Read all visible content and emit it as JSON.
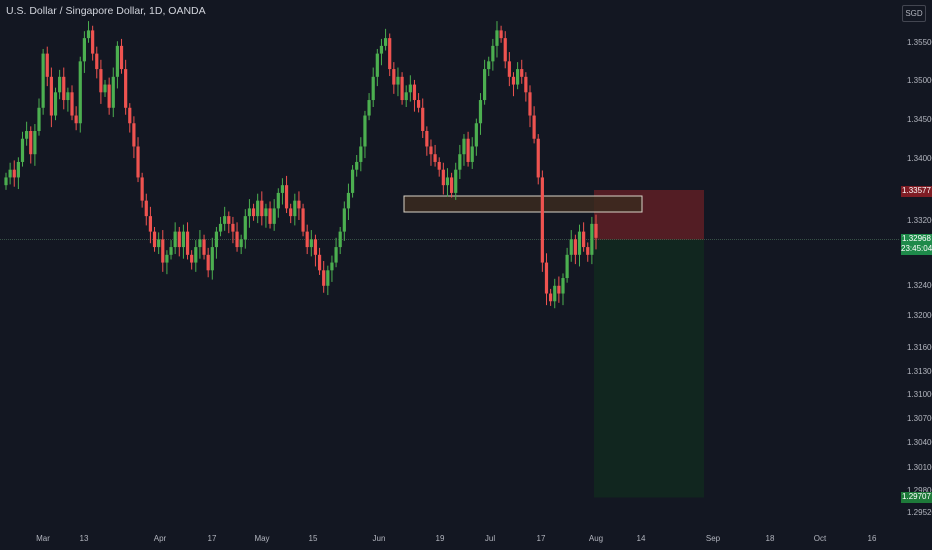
{
  "header": {
    "instrument": "U.S. Dollar / Singapore Dollar",
    "separator": ", ",
    "interval": "1D",
    "source": "OANDA",
    "currency": "SGD"
  },
  "colors": {
    "background": "#131722",
    "up": "#26a69a",
    "up_bright": "#4caf50",
    "down": "#ef5350",
    "zone_fill": "#3b2a1e",
    "zone_border": "#d9d3c7",
    "stop_zone": "#5b1e25",
    "target_zone": "#12281f",
    "current_line": "#5d8a6a"
  },
  "markers": {
    "current_price": "1.32968",
    "countdown": "23:45:04",
    "stop_price": "1.33577",
    "target_price": "1.29707"
  },
  "chart_data": {
    "type": "candlestick",
    "y_ticks": [
      "1.35500",
      "1.35000",
      "1.34500",
      "1.34000",
      "1.33200",
      "1.32400",
      "1.32000",
      "1.31600",
      "1.31300",
      "1.31000",
      "1.30700",
      "1.30400",
      "1.30100",
      "1.29800",
      "1.29520"
    ],
    "x_ticks": [
      "Mar",
      "13",
      "Apr",
      "17",
      "May",
      "15",
      "Jun",
      "19",
      "Jul",
      "17",
      "Aug",
      "14",
      "Sep",
      "18",
      "Oct",
      "16"
    ],
    "supply_zone": {
      "from": "1.3345",
      "to": "1.3325"
    },
    "position": {
      "entry": 1.32968,
      "stop": 1.33577,
      "target": 1.29707
    },
    "closes": [
      1.3375,
      1.3385,
      1.3375,
      1.3395,
      1.3425,
      1.3435,
      1.3405,
      1.3435,
      1.3465,
      1.3535,
      1.3505,
      1.3455,
      1.3485,
      1.3505,
      1.3475,
      1.3485,
      1.3455,
      1.3445,
      1.3525,
      1.3555,
      1.3565,
      1.3535,
      1.3515,
      1.3485,
      1.3495,
      1.3465,
      1.3505,
      1.3545,
      1.3515,
      1.3465,
      1.3445,
      1.3415,
      1.3375,
      1.3345,
      1.3325,
      1.3305,
      1.3285,
      1.3295,
      1.3265,
      1.3275,
      1.3285,
      1.3305,
      1.3285,
      1.3305,
      1.3275,
      1.3265,
      1.3285,
      1.3295,
      1.3275,
      1.3255,
      1.3285,
      1.3305,
      1.3315,
      1.3325,
      1.3315,
      1.3305,
      1.3285,
      1.3295,
      1.3325,
      1.3335,
      1.3325,
      1.3345,
      1.3325,
      1.3335,
      1.3315,
      1.3335,
      1.3355,
      1.3365,
      1.3335,
      1.3325,
      1.3345,
      1.3335,
      1.3305,
      1.3285,
      1.3295,
      1.3275,
      1.3255,
      1.3235,
      1.3255,
      1.3265,
      1.3285,
      1.3305,
      1.3335,
      1.3355,
      1.3385,
      1.3395,
      1.3415,
      1.3455,
      1.3475,
      1.3505,
      1.3535,
      1.3545,
      1.3555,
      1.3515,
      1.3495,
      1.3505,
      1.3475,
      1.3485,
      1.3495,
      1.3475,
      1.3465,
      1.3435,
      1.3415,
      1.3405,
      1.3395,
      1.3385,
      1.3365,
      1.3375,
      1.3355,
      1.3385,
      1.3405,
      1.3425,
      1.3395,
      1.3415,
      1.3445,
      1.3475,
      1.3515,
      1.3525,
      1.3545,
      1.3565,
      1.3555,
      1.3525,
      1.3505,
      1.3495,
      1.3515,
      1.3505,
      1.3485,
      1.3455,
      1.3425,
      1.3375,
      1.3265,
      1.3225,
      1.3215,
      1.3235,
      1.3225,
      1.3245,
      1.3275,
      1.3295,
      1.3275,
      1.3305,
      1.3285,
      1.3275,
      1.3315,
      1.3297
    ]
  }
}
